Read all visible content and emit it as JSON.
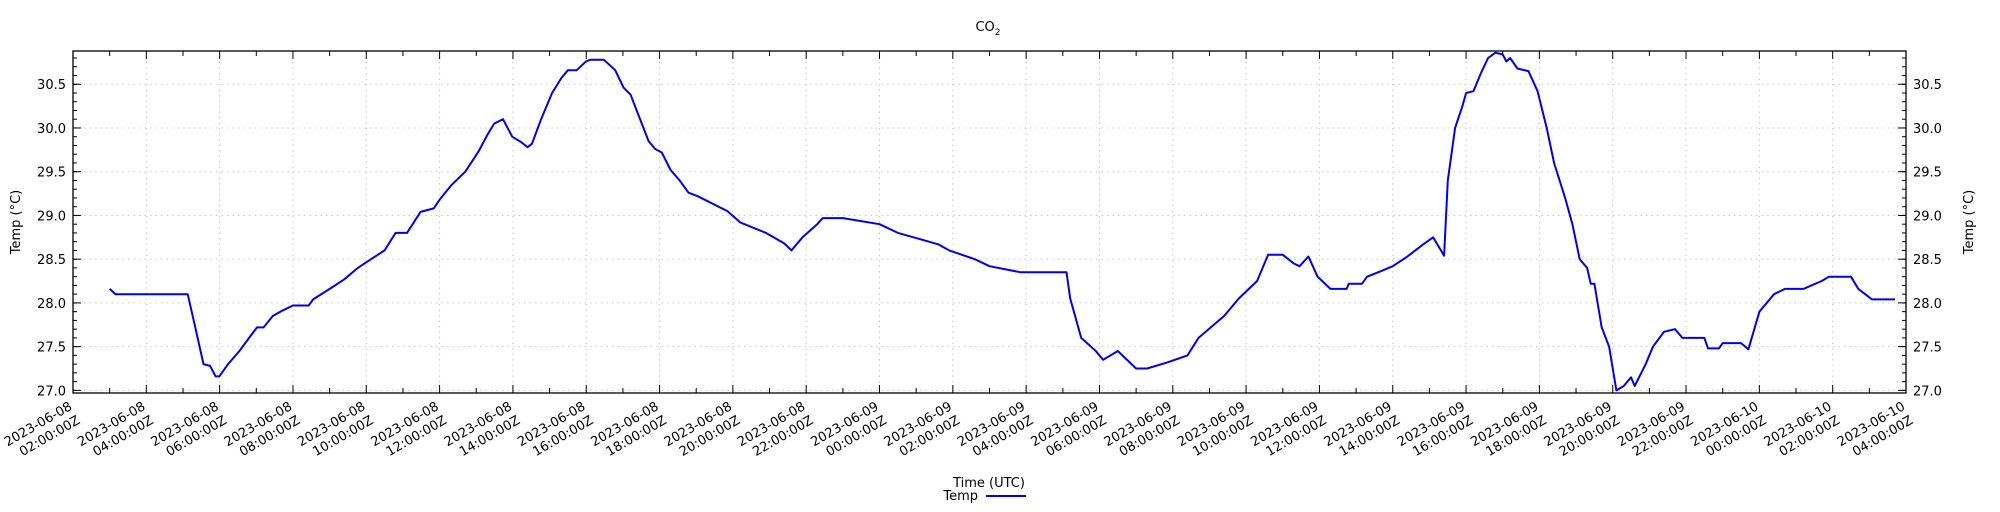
{
  "chart_data": {
    "type": "line",
    "title_main": "CO",
    "title_sub": "2",
    "xlabel": "Time (UTC)",
    "ylabel_left": "Temp (°C)",
    "ylabel_right": "Temp (°C)",
    "x_unit": "hours since 2023-06-08 02:00:00Z",
    "xlim": [
      0,
      50
    ],
    "ylim": [
      26.97,
      30.88
    ],
    "yticks": [
      "27.0",
      "27.5",
      "28.0",
      "28.5",
      "29.0",
      "29.5",
      "30.0",
      "30.5"
    ],
    "xticks": [
      [
        "2023-06-08",
        "02:00:00Z"
      ],
      [
        "2023-06-08",
        "04:00:00Z"
      ],
      [
        "2023-06-08",
        "06:00:00Z"
      ],
      [
        "2023-06-08",
        "08:00:00Z"
      ],
      [
        "2023-06-08",
        "10:00:00Z"
      ],
      [
        "2023-06-08",
        "12:00:00Z"
      ],
      [
        "2023-06-08",
        "14:00:00Z"
      ],
      [
        "2023-06-08",
        "16:00:00Z"
      ],
      [
        "2023-06-08",
        "18:00:00Z"
      ],
      [
        "2023-06-08",
        "20:00:00Z"
      ],
      [
        "2023-06-08",
        "22:00:00Z"
      ],
      [
        "2023-06-09",
        "00:00:00Z"
      ],
      [
        "2023-06-09",
        "02:00:00Z"
      ],
      [
        "2023-06-09",
        "04:00:00Z"
      ],
      [
        "2023-06-09",
        "06:00:00Z"
      ],
      [
        "2023-06-09",
        "08:00:00Z"
      ],
      [
        "2023-06-09",
        "10:00:00Z"
      ],
      [
        "2023-06-09",
        "12:00:00Z"
      ],
      [
        "2023-06-09",
        "14:00:00Z"
      ],
      [
        "2023-06-09",
        "16:00:00Z"
      ],
      [
        "2023-06-09",
        "18:00:00Z"
      ],
      [
        "2023-06-09",
        "20:00:00Z"
      ],
      [
        "2023-06-09",
        "22:00:00Z"
      ],
      [
        "2023-06-10",
        "00:00:00Z"
      ],
      [
        "2023-06-10",
        "02:00:00Z"
      ],
      [
        "2023-06-10",
        "04:00:00Z"
      ]
    ],
    "grid": true,
    "legend_position": "bottom-center",
    "series": [
      {
        "name": "Temp",
        "color": "#0000ee",
        "x": [
          1.0,
          1.16,
          3.13,
          3.32,
          3.56,
          3.74,
          3.89,
          3.99,
          4.23,
          4.54,
          4.84,
          5.02,
          5.2,
          5.45,
          5.7,
          6.0,
          6.43,
          6.55,
          7.04,
          7.4,
          7.77,
          8.13,
          8.5,
          8.8,
          9.11,
          9.48,
          9.84,
          10.02,
          10.33,
          10.7,
          11.06,
          11.3,
          11.49,
          11.73,
          11.98,
          12.22,
          12.4,
          12.52,
          12.77,
          13.07,
          13.32,
          13.5,
          13.74,
          13.99,
          14.11,
          14.48,
          14.79,
          15.02,
          15.21,
          15.45,
          15.7,
          15.88,
          16.06,
          16.3,
          16.55,
          16.79,
          17.04,
          17.85,
          18.2,
          18.9,
          19.4,
          19.6,
          19.9,
          20.3,
          20.45,
          21.0,
          22.0,
          22.5,
          23.1,
          23.6,
          23.9,
          24.6,
          25.0,
          25.85,
          27.1,
          27.2,
          27.5,
          27.9,
          28.1,
          28.5,
          29.0,
          29.3,
          29.85,
          30.4,
          30.7,
          31.4,
          31.8,
          32.3,
          32.6,
          33.0,
          33.3,
          33.46,
          33.7,
          33.95,
          34.3,
          34.74,
          34.8,
          35.16,
          35.3,
          35.66,
          36.0,
          36.4,
          36.8,
          37.1,
          37.4,
          37.5,
          37.7,
          37.9,
          38.0,
          38.2,
          38.4,
          38.6,
          38.8,
          39.0,
          39.1,
          39.2,
          39.4,
          39.7,
          39.95,
          40.2,
          40.4,
          40.7,
          40.9,
          41.1,
          41.3,
          41.4,
          41.5,
          41.7,
          41.9,
          42.1,
          42.3,
          42.5,
          42.6,
          42.9,
          43.1,
          43.4,
          43.7,
          43.9,
          44.5,
          44.6,
          44.9,
          45.0,
          45.5,
          45.7,
          46.0,
          46.4,
          46.7,
          47.2,
          47.7,
          47.9,
          48.5,
          48.7,
          48.95,
          49.07,
          49.7
        ],
        "y": [
          28.16,
          28.1,
          28.1,
          27.75,
          27.3,
          27.28,
          27.16,
          27.16,
          27.3,
          27.45,
          27.62,
          27.72,
          27.72,
          27.85,
          27.91,
          27.97,
          27.97,
          28.04,
          28.17,
          28.27,
          28.4,
          28.5,
          28.6,
          28.8,
          28.8,
          29.04,
          29.08,
          29.19,
          29.35,
          29.5,
          29.73,
          29.92,
          30.05,
          30.1,
          29.9,
          29.84,
          29.78,
          29.82,
          30.1,
          30.4,
          30.57,
          30.66,
          30.66,
          30.76,
          30.78,
          30.78,
          30.66,
          30.46,
          30.38,
          30.12,
          29.85,
          29.76,
          29.72,
          29.52,
          29.4,
          29.26,
          29.22,
          29.05,
          28.92,
          28.8,
          28.68,
          28.6,
          28.75,
          28.9,
          28.97,
          28.97,
          28.9,
          28.8,
          28.73,
          28.67,
          28.6,
          28.5,
          28.42,
          28.35,
          28.35,
          28.05,
          27.6,
          27.45,
          27.35,
          27.45,
          27.25,
          27.25,
          27.32,
          27.4,
          27.6,
          27.85,
          28.05,
          28.25,
          28.55,
          28.55,
          28.45,
          28.42,
          28.53,
          28.3,
          28.16,
          28.16,
          28.22,
          28.22,
          28.3,
          28.36,
          28.42,
          28.53,
          28.66,
          28.75,
          28.54,
          29.4,
          30.0,
          30.25,
          30.4,
          30.42,
          30.62,
          30.8,
          30.86,
          30.84,
          30.76,
          30.8,
          30.68,
          30.65,
          30.42,
          30.0,
          29.6,
          29.2,
          28.9,
          28.5,
          28.4,
          28.22,
          28.22,
          27.72,
          27.5,
          27.0,
          27.05,
          27.15,
          27.05,
          27.3,
          27.5,
          27.67,
          27.7,
          27.6,
          27.6,
          27.48,
          27.48,
          27.54,
          27.54,
          27.47,
          27.9,
          28.1,
          28.16,
          28.16,
          28.25,
          28.3,
          28.3,
          28.16,
          28.08,
          28.04,
          28.04
        ]
      }
    ]
  }
}
